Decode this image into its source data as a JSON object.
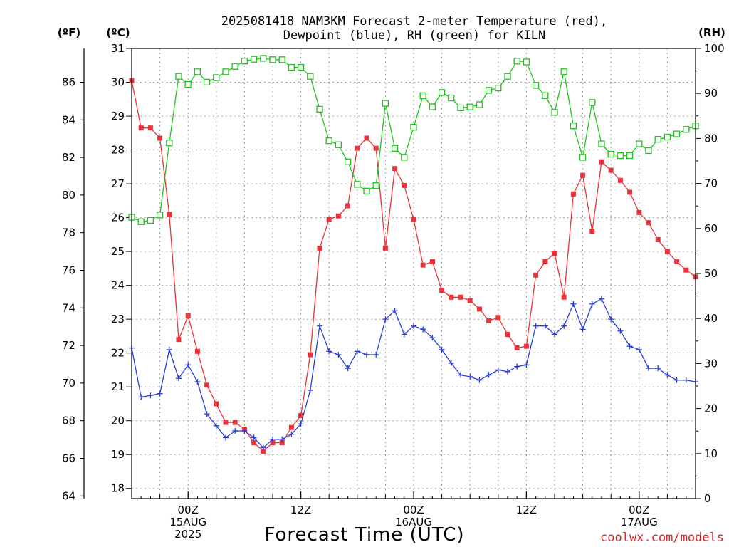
{
  "chart_data": {
    "type": "line",
    "title_line1": "2025081418 NAM3KM Forecast 2-meter Temperature (red),",
    "title_line2": "Dewpoint (blue), RH (green) for KILN",
    "xlabel": "Forecast Time (UTC)",
    "credit": "coolwx.com/models",
    "left_outer_unit": "(ºF)",
    "left_inner_unit": "(ºC)",
    "right_unit": "(RH)",
    "x_step_hours": 1,
    "x_ticks": [
      {
        "hour": 6,
        "lines": [
          "00Z",
          "15AUG",
          "2025"
        ]
      },
      {
        "hour": 18,
        "lines": [
          "12Z"
        ]
      },
      {
        "hour": 30,
        "lines": [
          "00Z",
          "16AUG"
        ]
      },
      {
        "hour": 42,
        "lines": [
          "12Z"
        ]
      },
      {
        "hour": 54,
        "lines": [
          "00Z",
          "17AUG"
        ]
      }
    ],
    "celsius_axis": {
      "min": 17.7,
      "max": 31.0,
      "ticks": [
        18,
        19,
        20,
        21,
        22,
        23,
        24,
        25,
        26,
        27,
        28,
        29,
        30,
        31
      ]
    },
    "fahrenheit_ticks": [
      64,
      66,
      68,
      70,
      72,
      74,
      76,
      78,
      80,
      82,
      84,
      86
    ],
    "rh_axis": {
      "min": 0,
      "max": 100,
      "ticks": [
        0,
        10,
        20,
        30,
        40,
        50,
        60,
        70,
        80,
        90,
        100
      ]
    },
    "grid": true,
    "colors": {
      "temperature": "#e8343a",
      "dewpoint": "#2a3fd6",
      "rh": "#21c21f",
      "grid": "#a0a0a0",
      "credit": "#d22222"
    },
    "series": [
      {
        "key": "temperature",
        "axis": "celsius",
        "marker": "filled-square",
        "values": [
          30.05,
          28.65,
          28.65,
          28.35,
          26.1,
          22.4,
          23.1,
          22.05,
          21.05,
          20.5,
          19.95,
          19.95,
          19.75,
          19.35,
          19.1,
          19.35,
          19.35,
          19.8,
          20.15,
          21.95,
          25.1,
          25.95,
          26.05,
          26.35,
          28.05,
          28.35,
          28.05,
          25.1,
          27.45,
          26.95,
          25.95,
          24.6,
          24.7,
          23.85,
          23.65,
          23.65,
          23.55,
          23.3,
          22.95,
          23.05,
          22.55,
          22.15,
          22.2,
          24.3,
          24.7,
          24.95,
          23.65,
          26.7,
          27.25,
          25.6,
          27.65,
          27.4,
          27.1,
          26.75,
          26.15,
          25.85,
          25.35,
          25.0,
          24.7,
          24.45,
          24.25
        ]
      },
      {
        "key": "dewpoint",
        "axis": "celsius",
        "marker": "plus",
        "values": [
          22.15,
          20.7,
          20.75,
          20.8,
          22.1,
          21.25,
          21.65,
          21.15,
          20.2,
          19.85,
          19.5,
          19.7,
          19.7,
          19.5,
          19.2,
          19.45,
          19.45,
          19.6,
          19.9,
          20.9,
          22.8,
          22.05,
          21.95,
          21.55,
          22.05,
          21.95,
          21.95,
          23.0,
          23.25,
          22.55,
          22.8,
          22.7,
          22.45,
          22.1,
          21.7,
          21.35,
          21.3,
          21.2,
          21.35,
          21.5,
          21.45,
          21.6,
          21.65,
          22.8,
          22.8,
          22.55,
          22.8,
          23.45,
          22.7,
          23.45,
          23.6,
          23.0,
          22.65,
          22.2,
          22.1,
          21.55,
          21.55,
          21.35,
          21.2,
          21.2,
          21.15
        ]
      },
      {
        "key": "rh",
        "axis": "rh",
        "marker": "open-square",
        "values": [
          62.5,
          61.5,
          61.8,
          63.0,
          79.0,
          93.8,
          92.0,
          94.8,
          92.5,
          93.5,
          94.8,
          96.0,
          97.2,
          97.6,
          97.8,
          97.5,
          97.5,
          95.8,
          95.8,
          93.8,
          86.5,
          79.5,
          78.6,
          74.8,
          69.8,
          68.3,
          69.5,
          87.8,
          77.8,
          75.8,
          82.5,
          89.5,
          87.0,
          90.2,
          89.0,
          86.8,
          87.0,
          87.5,
          90.7,
          91.2,
          93.8,
          97.2,
          97.0,
          91.8,
          89.5,
          85.8,
          94.8,
          82.8,
          75.8,
          88.0,
          78.8,
          76.5,
          76.2,
          76.2,
          78.8,
          77.3,
          79.8,
          80.3,
          81.0,
          82.0,
          82.8
        ]
      }
    ]
  }
}
